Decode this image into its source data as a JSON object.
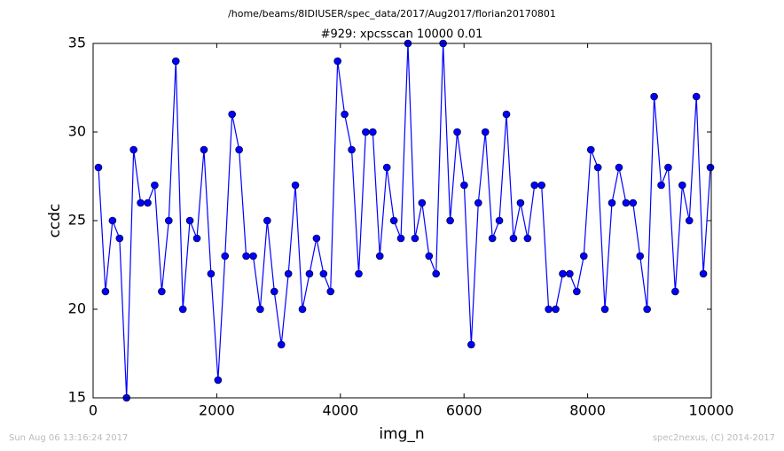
{
  "chart_data": {
    "type": "line",
    "subtitle": "/home/beams/8IDIUSER/spec_data/2017/Aug2017/florian20170801",
    "title": "#929: xpcsscan 10000 0.01",
    "x_label": "img_n",
    "y_label": "ccdc",
    "color": "#0000ff",
    "x": [
      86,
      200,
      314,
      428,
      541,
      655,
      769,
      883,
      996,
      1110,
      1224,
      1338,
      1452,
      1565,
      1679,
      1793,
      1907,
      2021,
      2134,
      2248,
      2362,
      2476,
      2590,
      2703,
      2817,
      2931,
      3045,
      3159,
      3272,
      3386,
      3500,
      3614,
      3728,
      3841,
      3955,
      4069,
      4183,
      4297,
      4410,
      4524,
      4638,
      4752,
      4866,
      4979,
      5093,
      5207,
      5321,
      5435,
      5548,
      5662,
      5776,
      5890,
      6003,
      6117,
      6231,
      6345,
      6459,
      6572,
      6686,
      6800,
      6914,
      7028,
      7141,
      7255,
      7369,
      7483,
      7597,
      7710,
      7824,
      7938,
      8052,
      8166,
      8279,
      8393,
      8507,
      8621,
      8734,
      8848,
      8962,
      9076,
      9190,
      9303,
      9417,
      9531,
      9645,
      9759,
      9872,
      9986
    ],
    "values": [
      28,
      21,
      25,
      24,
      15,
      29,
      26,
      26,
      27,
      21,
      25,
      34,
      20,
      25,
      24,
      29,
      22,
      16,
      23,
      31,
      29,
      23,
      23,
      20,
      25,
      21,
      18,
      22,
      27,
      20,
      22,
      24,
      22,
      21,
      34,
      31,
      29,
      22,
      30,
      30,
      23,
      28,
      25,
      24,
      35,
      24,
      26,
      23,
      22,
      35,
      25,
      30,
      27,
      18,
      26,
      30,
      24,
      25,
      31,
      24,
      26,
      24,
      27,
      27,
      20,
      20,
      22,
      22,
      21,
      23,
      29,
      28,
      20,
      26,
      28,
      26,
      26,
      23,
      20,
      32,
      27,
      28,
      21,
      27,
      25,
      32,
      22,
      28
    ],
    "xlim": [
      0,
      10000
    ],
    "xticks": [
      0,
      2000,
      4000,
      6000,
      8000,
      10000
    ],
    "ylim": [
      15,
      35
    ],
    "yticks": [
      15,
      20,
      25,
      30,
      35
    ]
  },
  "footer": {
    "left": "Sun Aug 06 13:16:24 2017",
    "right": "spec2nexus, (C) 2014-2017"
  }
}
